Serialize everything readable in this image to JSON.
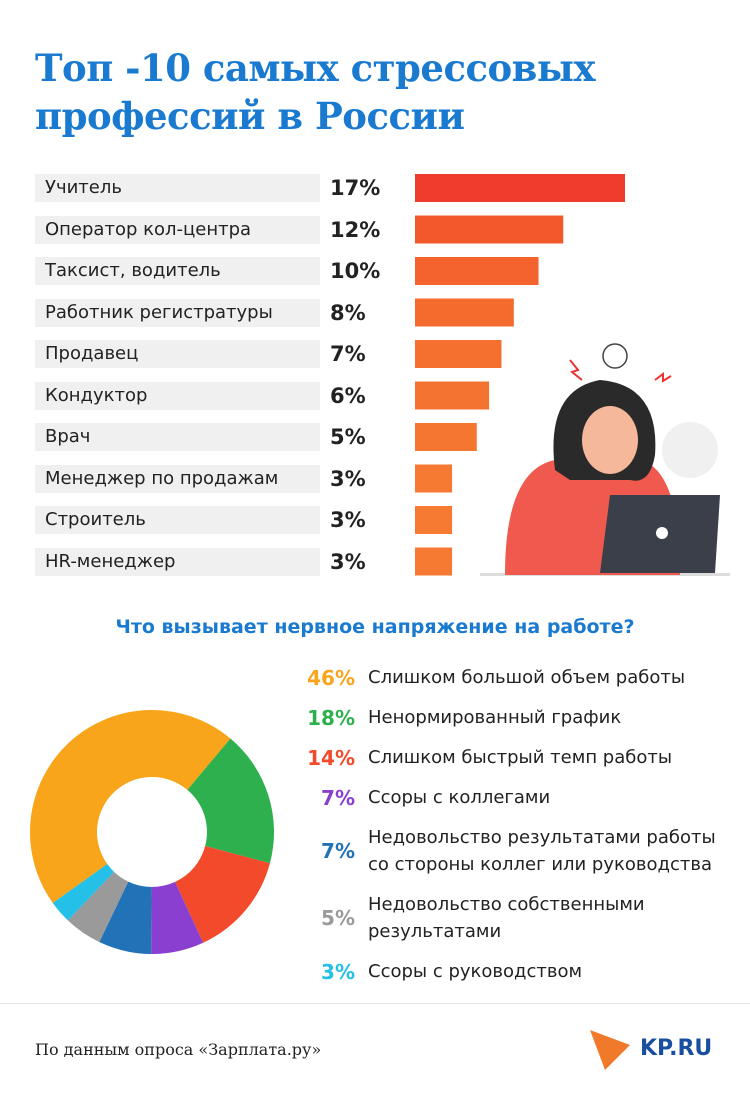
{
  "chart_data": [
    {
      "type": "bar",
      "title": "Топ -10 самых стрессовых профессий в России",
      "categories": [
        "Учитель",
        "Оператор кол-центра",
        "Таксист, водитель",
        "Работник регистратуры",
        "Продавец",
        "Кондуктор",
        "Врач",
        "Менеджер по продажам",
        "Строитель",
        "HR-менеджер"
      ],
      "values": [
        17,
        12,
        10,
        8,
        7,
        6,
        5,
        3,
        3,
        3
      ],
      "value_labels": [
        "17%",
        "12%",
        "10%",
        "8%",
        "7%",
        "6%",
        "5%",
        "3%",
        "3%",
        "3%"
      ],
      "colors": [
        "#f03c2c",
        "#f3582c",
        "#f4632d",
        "#f56b2e",
        "#f5702f",
        "#f57330",
        "#f57631",
        "#f67a32",
        "#f67a32",
        "#f67a32"
      ]
    },
    {
      "type": "donut",
      "title": "Что вызывает нервное напряжение на работе?",
      "categories": [
        "Слишком большой объем работы",
        "Ненормированный график",
        "Слишком быстрый темп работы",
        "Ссоры с коллегами",
        "Недовольство результатами работы со стороны коллег или руководства",
        "Недовольство собственными результатами",
        "Ссоры с руководством"
      ],
      "values": [
        46,
        18,
        14,
        7,
        7,
        5,
        3
      ],
      "value_labels": [
        "46%",
        "18%",
        "14%",
        "7%",
        "7%",
        "5%",
        "3%"
      ],
      "colors": [
        "#f9a51b",
        "#2eb04f",
        "#f24a2a",
        "#8a3fd1",
        "#2272b8",
        "#9a9a9a",
        "#25c0e8"
      ]
    }
  ],
  "footer": {
    "source": "По данным опроса «Зарплата.ру»",
    "logo": "KP.RU"
  }
}
